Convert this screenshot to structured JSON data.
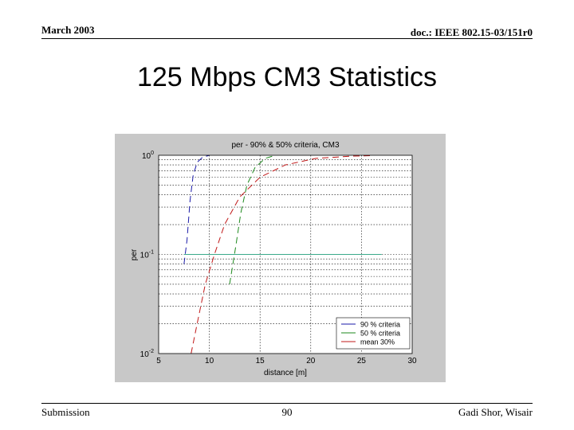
{
  "header": {
    "date": "March 2003",
    "doc": "doc.: IEEE 802.15-03/151r0"
  },
  "slide": {
    "title": "125 Mbps CM3 Statistics"
  },
  "footer": {
    "left": "Submission",
    "page": "90",
    "right": "Gadi Shor, Wisair"
  },
  "chart_data": {
    "type": "line",
    "title": "per - 90% & 50% criteria, CM3",
    "xlabel": "distance [m]",
    "ylabel": "per",
    "xlim": [
      5,
      30
    ],
    "ylim": [
      0.01,
      1
    ],
    "yscale": "log",
    "grid": true,
    "x_ticks": [
      5,
      10,
      15,
      20,
      25,
      30
    ],
    "y_ticks": [
      {
        "value": 1,
        "base": "10",
        "exp": "0"
      },
      {
        "value": 0.1,
        "base": "10",
        "exp": "-1"
      },
      {
        "value": 0.01,
        "base": "10",
        "exp": "-2"
      }
    ],
    "legend_position": "bottom-right",
    "colors": {
      "blue": "#1a1aa8",
      "green": "#1e8a1e",
      "red": "#c01818",
      "teal": "#3aaa8a"
    },
    "series": [
      {
        "name": "90 % criteria",
        "color": "#1a1aa8",
        "dash": "8,5",
        "x": [
          7.5,
          7.8,
          8.1,
          8.4,
          8.8,
          9.3,
          10.0
        ],
        "y": [
          0.08,
          0.14,
          0.35,
          0.62,
          0.85,
          0.95,
          1.0
        ]
      },
      {
        "name": "50 % criteria",
        "color": "#1e8a1e",
        "dash": "8,5",
        "x": [
          12.0,
          12.6,
          13.1,
          13.7,
          14.5,
          15.5,
          16.5
        ],
        "y": [
          0.05,
          0.12,
          0.26,
          0.5,
          0.75,
          0.93,
          1.0
        ]
      },
      {
        "name": "mean 30%",
        "color": "#c01818",
        "dash": "8,5",
        "x": [
          8.2,
          8.8,
          9.6,
          10.5,
          11.5,
          13.0,
          15.0,
          17.5,
          20.5,
          24.0,
          26.0
        ],
        "y": [
          0.01,
          0.02,
          0.05,
          0.1,
          0.2,
          0.38,
          0.6,
          0.8,
          0.93,
          0.98,
          0.99
        ]
      },
      {
        "color": "#3aaa8a",
        "dash": "",
        "x": [
          7.5,
          27.0
        ],
        "y": [
          0.1,
          0.1
        ]
      }
    ]
  }
}
